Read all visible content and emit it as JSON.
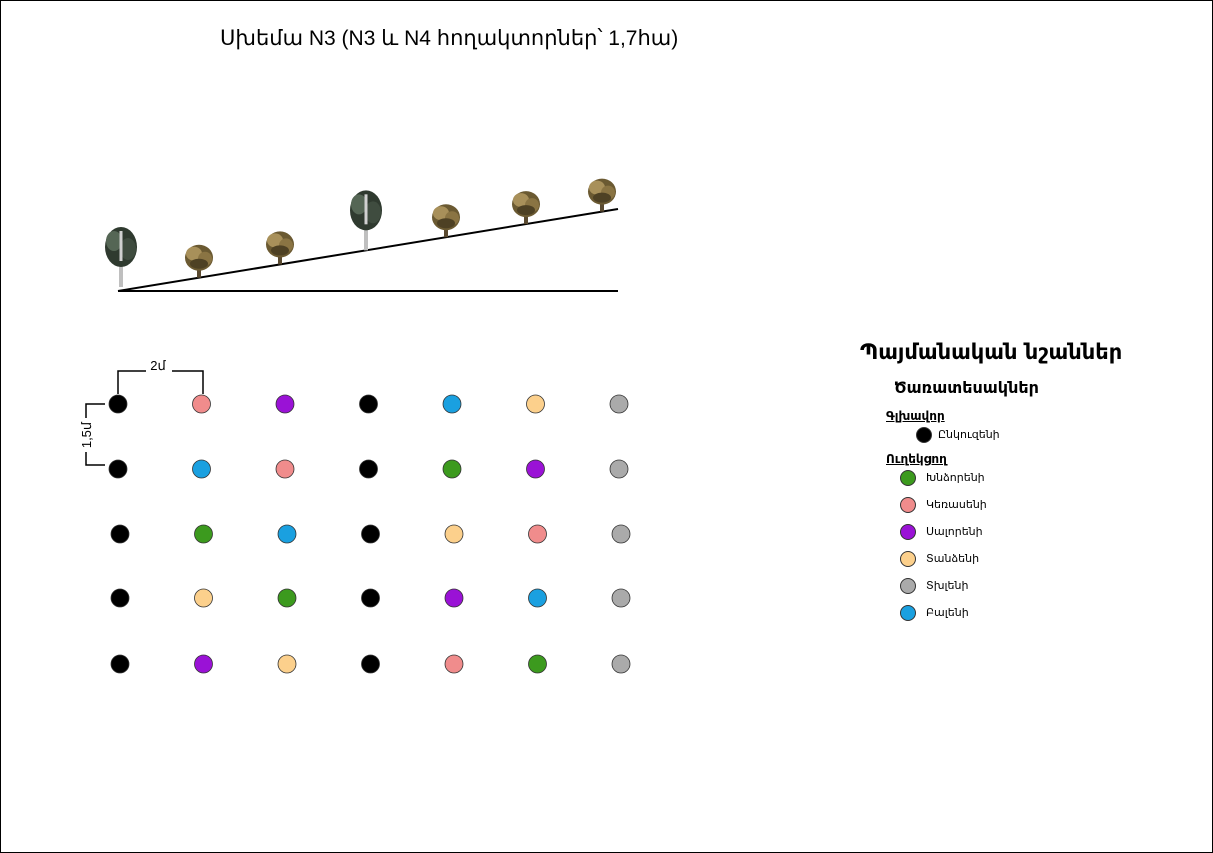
{
  "title": "Սխեմա N3 (N3 և N4 հողակտորներ՝ 1,7հա)",
  "dimensions": {
    "horizontal": "2մ",
    "vertical": "1,5մ"
  },
  "slope_trees": [
    "deciduous-tall",
    "bush",
    "bush",
    "deciduous-tall",
    "bush",
    "bush",
    "bush"
  ],
  "legend": {
    "title": "Պայմանական նշաններ",
    "subtitle": "Ծառատեսակներ",
    "main_group": {
      "label": "Գլխավոր",
      "items": [
        {
          "key": "walnut",
          "label": "Ընկուզենի",
          "color": "#000000"
        }
      ]
    },
    "companion_group": {
      "label": "Ուղեկցող",
      "items": [
        {
          "key": "cornel",
          "label": "Խնձորենի",
          "color": "#3c9a1e"
        },
        {
          "key": "cherry",
          "label": "Կեռասենի",
          "color": "#f08c8c"
        },
        {
          "key": "plum",
          "label": "Սալորենի",
          "color": "#9a12d6"
        },
        {
          "key": "pear",
          "label": "Տանձենի",
          "color": "#fcd08c"
        },
        {
          "key": "fig",
          "label": "Տխլենի",
          "color": "#aaaaaa"
        },
        {
          "key": "blue",
          "label": "Բալենի",
          "color": "#1aa0e0"
        }
      ]
    }
  },
  "grid": [
    [
      "walnut",
      "cherry",
      "plum",
      "walnut",
      "blue",
      "pear",
      "fig"
    ],
    [
      "walnut",
      "blue",
      "cherry",
      "walnut",
      "cornel",
      "plum",
      "fig"
    ],
    [
      "walnut",
      "cornel",
      "blue",
      "walnut",
      "pear",
      "cherry",
      "fig"
    ],
    [
      "walnut",
      "pear",
      "cornel",
      "walnut",
      "plum",
      "blue",
      "fig"
    ],
    [
      "walnut",
      "plum",
      "pear",
      "walnut",
      "cherry",
      "cornel",
      "fig"
    ]
  ]
}
